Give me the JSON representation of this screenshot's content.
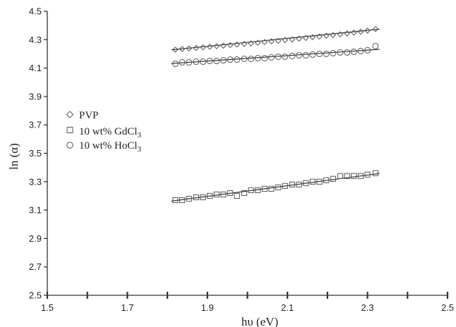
{
  "chart_data": {
    "type": "scatter",
    "xlabel": "hυ (eV)",
    "ylabel": "ln (α)",
    "xlim": [
      1.5,
      2.5
    ],
    "ylim": [
      2.5,
      4.5
    ],
    "xticks": [
      "1.5",
      "1.7",
      "1.9",
      "2.1",
      "2.3",
      "2.5"
    ],
    "yticks": [
      "2.5",
      "2.7",
      "2.9",
      "3.1",
      "3.3",
      "3.5",
      "3.7",
      "3.9",
      "4.1",
      "4.3",
      "4.5"
    ],
    "x_minor_ticks": [
      1.6,
      1.8,
      2.0,
      2.2,
      2.4
    ],
    "legend_position": "left-middle",
    "series": [
      {
        "name": "PVP",
        "marker": "diamond",
        "x": [
          1.82,
          1.837,
          1.854,
          1.872,
          1.889,
          1.906,
          1.923,
          1.94,
          1.957,
          1.974,
          1.992,
          2.009,
          2.026,
          2.043,
          2.06,
          2.077,
          2.094,
          2.112,
          2.129,
          2.146,
          2.163,
          2.18,
          2.197,
          2.214,
          2.232,
          2.249,
          2.266,
          2.283,
          2.3,
          2.32
        ],
        "y": [
          4.23,
          4.235,
          4.238,
          4.242,
          4.246,
          4.25,
          4.254,
          4.258,
          4.262,
          4.266,
          4.27,
          4.274,
          4.278,
          4.283,
          4.288,
          4.292,
          4.297,
          4.302,
          4.307,
          4.312,
          4.317,
          4.322,
          4.328,
          4.333,
          4.338,
          4.344,
          4.35,
          4.356,
          4.364,
          4.375
        ],
        "fit": [
          [
            1.81,
            4.228
          ],
          [
            2.33,
            4.374
          ]
        ]
      },
      {
        "name": "10 wt% GdCl",
        "name_subscript": "3",
        "marker": "square",
        "x": [
          1.82,
          1.837,
          1.854,
          1.872,
          1.889,
          1.906,
          1.923,
          1.94,
          1.957,
          1.974,
          1.992,
          2.009,
          2.026,
          2.043,
          2.06,
          2.077,
          2.094,
          2.112,
          2.129,
          2.146,
          2.163,
          2.18,
          2.197,
          2.214,
          2.232,
          2.249,
          2.266,
          2.283,
          2.3,
          2.32
        ],
        "y": [
          3.17,
          3.17,
          3.18,
          3.19,
          3.19,
          3.2,
          3.21,
          3.21,
          3.22,
          3.2,
          3.22,
          3.24,
          3.24,
          3.25,
          3.25,
          3.26,
          3.27,
          3.28,
          3.28,
          3.29,
          3.3,
          3.3,
          3.31,
          3.32,
          3.34,
          3.34,
          3.34,
          3.34,
          3.35,
          3.36
        ],
        "fit": [
          [
            1.81,
            3.163
          ],
          [
            2.33,
            3.358
          ]
        ]
      },
      {
        "name": "10 wt% HoCl",
        "name_subscript": "3",
        "marker": "circle",
        "x": [
          1.82,
          1.837,
          1.854,
          1.872,
          1.889,
          1.906,
          1.923,
          1.94,
          1.957,
          1.974,
          1.992,
          2.009,
          2.026,
          2.043,
          2.06,
          2.077,
          2.094,
          2.112,
          2.129,
          2.146,
          2.163,
          2.18,
          2.197,
          2.214,
          2.232,
          2.249,
          2.266,
          2.283,
          2.3,
          2.32
        ],
        "y": [
          4.13,
          4.14,
          4.14,
          4.145,
          4.145,
          4.15,
          4.15,
          4.155,
          4.16,
          4.16,
          4.165,
          4.165,
          4.17,
          4.17,
          4.175,
          4.18,
          4.18,
          4.185,
          4.19,
          4.19,
          4.195,
          4.2,
          4.2,
          4.205,
          4.21,
          4.21,
          4.215,
          4.22,
          4.225,
          4.255
        ],
        "fit": [
          [
            1.81,
            4.132
          ],
          [
            2.33,
            4.232
          ]
        ]
      }
    ]
  }
}
